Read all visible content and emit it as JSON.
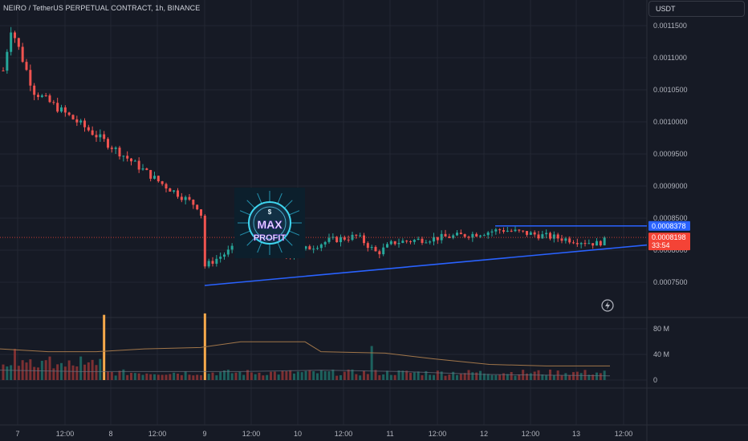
{
  "header": {
    "title": "NEIRO / TetherUS PERPETUAL CONTRACT, 1h, BINANCE",
    "currency": "USDT"
  },
  "logo": {
    "line1": "MAX",
    "line2": "PROFIT",
    "coin": "$"
  },
  "colors": {
    "background": "#161a25",
    "up": "#26a69a",
    "down": "#ef5350",
    "volume_up": "#1f6e67",
    "volume_down": "#8f3535",
    "volume_spike": "#f6a94b",
    "trendline": "#2962ff",
    "price_line": "#f44336",
    "grid": "#232732"
  },
  "price_scale": {
    "ticks": [
      "0.0011500",
      "0.0011000",
      "0.0010500",
      "0.0010000",
      "0.0009500",
      "0.0009000",
      "0.0008500",
      "0.0008000",
      "0.0007500"
    ],
    "markers": [
      {
        "label": "0.0008378",
        "value": 0.0008378,
        "color": "#2962ff"
      },
      {
        "label": "0.0008198",
        "sub": "33:54",
        "value": 0.0008198,
        "color": "#f44336"
      }
    ]
  },
  "volume_scale": {
    "ticks": [
      "80 M",
      "40 M",
      "0"
    ]
  },
  "time_axis": {
    "labels": [
      "7",
      "12:00",
      "8",
      "12:00",
      "9",
      "12:00",
      "10",
      "12:00",
      "11",
      "12:00",
      "12",
      "12:00",
      "13",
      "12:00"
    ]
  },
  "chart_data": {
    "type": "candlestick",
    "symbol": "NEIRO / TetherUS PERPETUAL CONTRACT",
    "interval": "1h",
    "ylim": [
      0.00071,
      0.00117
    ],
    "last_price": 0.0008198,
    "countdown": "33:54",
    "anchors": [
      {
        "day": "7",
        "price": 0.00108
      },
      {
        "day": "7",
        "price": 0.001148
      },
      {
        "day": "8",
        "price": 0.001048
      },
      {
        "day": "8",
        "price": 0.00097
      },
      {
        "day": "8",
        "price": 0.000905
      },
      {
        "day": "9",
        "price": 0.000865
      },
      {
        "day": "9",
        "price": 0.000775
      },
      {
        "day": "9",
        "price": 0.00081
      },
      {
        "day": "10",
        "price": 0.00079
      },
      {
        "day": "10",
        "price": 0.000815
      },
      {
        "day": "10",
        "price": 0.000822
      },
      {
        "day": "11",
        "price": 0.000795
      },
      {
        "day": "11",
        "price": 0.000812
      },
      {
        "day": "12",
        "price": 0.000825
      },
      {
        "day": "12",
        "price": 0.000832
      },
      {
        "day": "13",
        "price": 0.00081
      },
      {
        "day": "13",
        "price": 0.000822
      }
    ],
    "trendlines": [
      {
        "name": "support",
        "from": {
          "day": "9",
          "price": 0.000745
        },
        "to": {
          "day": "13",
          "price": 0.000808
        }
      },
      {
        "name": "resistance",
        "from": {
          "day": "12",
          "price": 0.0008378
        },
        "to": {
          "day": "13",
          "price": 0.0008378
        }
      }
    ],
    "volume": {
      "ylim": [
        0,
        95
      ],
      "unit": "M",
      "spikes": [
        {
          "day": "8",
          "value": 92
        },
        {
          "day": "9",
          "value": 94
        }
      ]
    }
  }
}
